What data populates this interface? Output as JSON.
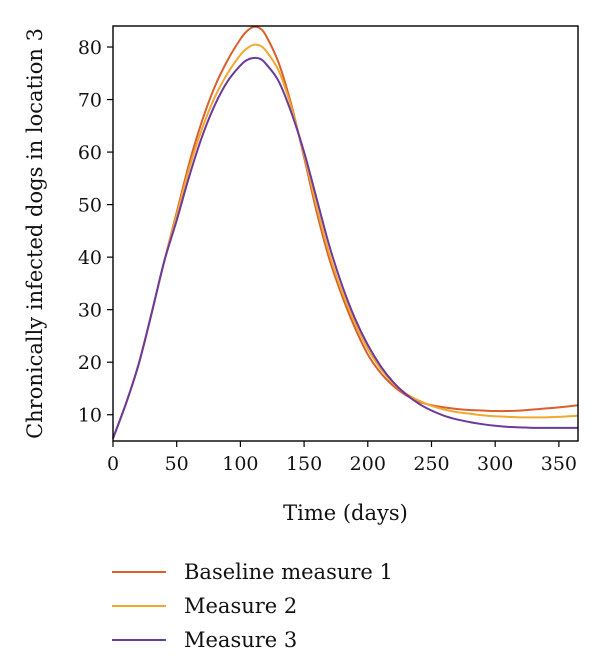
{
  "chart_data": {
    "type": "line",
    "title": "",
    "xlabel": "Time (days)",
    "ylabel": "Chronically infected dogs in location 3",
    "xlim": [
      0,
      365
    ],
    "ylim": [
      5,
      84
    ],
    "xticks": [
      0,
      50,
      100,
      150,
      200,
      250,
      300,
      350
    ],
    "yticks": [
      10,
      20,
      30,
      40,
      50,
      60,
      70,
      80
    ],
    "grid": false,
    "legend_position": "bottom",
    "series": [
      {
        "name": "Baseline measure 1",
        "color": "#d95f2b",
        "x": [
          0,
          10,
          20,
          30,
          40,
          50,
          60,
          70,
          80,
          90,
          100,
          105,
          110,
          115,
          120,
          130,
          140,
          150,
          160,
          170,
          180,
          190,
          200,
          210,
          220,
          230,
          240,
          250,
          260,
          270,
          280,
          290,
          300,
          310,
          320,
          330,
          340,
          350,
          365
        ],
        "values": [
          5.5,
          12,
          19.5,
          29,
          39,
          48.5,
          58,
          66,
          72.5,
          77.5,
          81.5,
          83,
          83.8,
          83.6,
          82.2,
          77,
          69,
          59,
          48.5,
          39.5,
          32.5,
          26.5,
          21.5,
          18,
          15.5,
          13.7,
          12.5,
          11.8,
          11.4,
          11.1,
          10.9,
          10.8,
          10.7,
          10.7,
          10.8,
          11,
          11.2,
          11.4,
          11.8
        ]
      },
      {
        "name": "Measure 2",
        "color": "#f0a830",
        "x": [
          0,
          10,
          20,
          30,
          40,
          50,
          60,
          70,
          80,
          90,
          100,
          105,
          110,
          115,
          120,
          130,
          140,
          150,
          160,
          170,
          180,
          190,
          200,
          210,
          220,
          230,
          240,
          250,
          260,
          270,
          280,
          290,
          300,
          310,
          320,
          330,
          340,
          350,
          365
        ],
        "values": [
          5.5,
          12,
          19.5,
          29,
          39,
          48,
          57,
          64.5,
          70.5,
          75,
          78.5,
          79.7,
          80.4,
          80.3,
          79.3,
          75.5,
          68.5,
          59.5,
          49.5,
          40.5,
          33.3,
          27.5,
          22.5,
          18.8,
          16,
          14,
          12.7,
          11.7,
          11,
          10.5,
          10.2,
          9.9,
          9.7,
          9.6,
          9.5,
          9.5,
          9.5,
          9.6,
          9.8
        ]
      },
      {
        "name": "Measure 3",
        "color": "#6a3a9c",
        "x": [
          0,
          10,
          20,
          30,
          40,
          50,
          60,
          70,
          80,
          90,
          100,
          105,
          110,
          115,
          120,
          130,
          140,
          150,
          160,
          170,
          180,
          190,
          200,
          210,
          220,
          230,
          240,
          250,
          260,
          270,
          280,
          290,
          300,
          310,
          320,
          330,
          340,
          350,
          365
        ],
        "values": [
          5.5,
          12,
          19.5,
          29,
          39,
          47,
          55.5,
          63,
          69,
          73.5,
          76.5,
          77.5,
          77.9,
          77.8,
          76.8,
          73.5,
          67.5,
          60,
          51,
          42,
          34.5,
          28.3,
          23.3,
          19.3,
          16.2,
          13.9,
          12.1,
          10.8,
          9.8,
          9.1,
          8.6,
          8.2,
          7.9,
          7.7,
          7.6,
          7.5,
          7.5,
          7.5,
          7.5
        ]
      }
    ]
  }
}
